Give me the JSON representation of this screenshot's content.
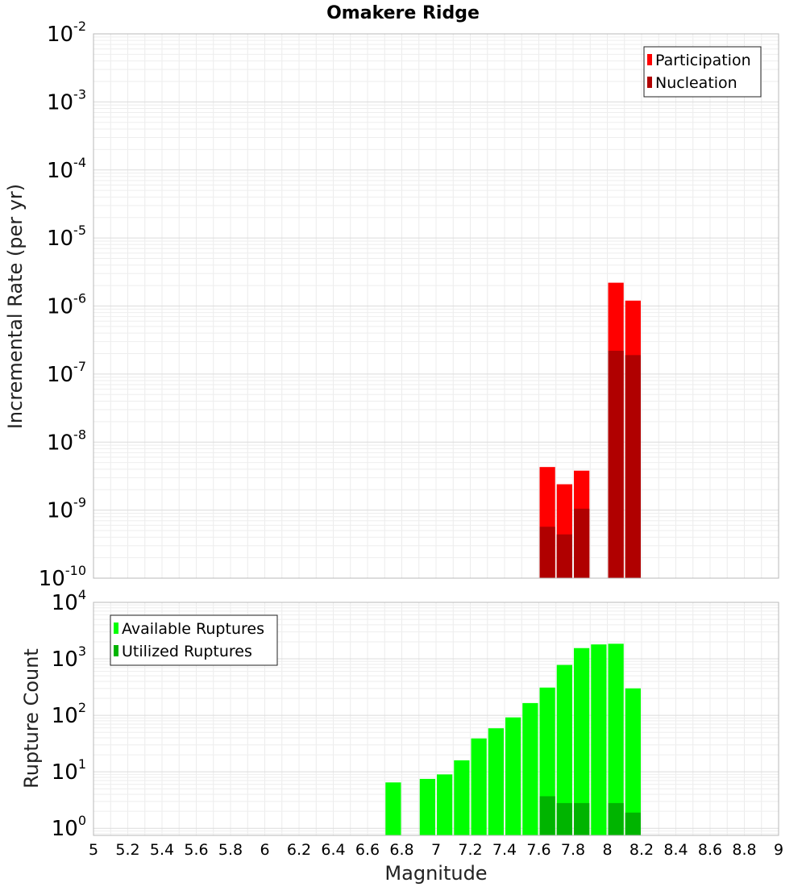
{
  "chart_data": [
    {
      "type": "bar",
      "title": "Omakere Ridge",
      "xlabel": "",
      "ylabel": "Incremental Rate (per yr)",
      "xlim": [
        5,
        9
      ],
      "ylim": [
        1e-10,
        0.01
      ],
      "yscale": "log",
      "grid": true,
      "legend_position": "top-right",
      "bin_width": 0.1,
      "y_ticks": [
        {
          "base": "10",
          "exp": "-10"
        },
        {
          "base": "10",
          "exp": "-9"
        },
        {
          "base": "10",
          "exp": "-8"
        },
        {
          "base": "10",
          "exp": "-7"
        },
        {
          "base": "10",
          "exp": "-6"
        },
        {
          "base": "10",
          "exp": "-5"
        },
        {
          "base": "10",
          "exp": "-4"
        },
        {
          "base": "10",
          "exp": "-3"
        },
        {
          "base": "10",
          "exp": "-2"
        }
      ],
      "series": [
        {
          "name": "Participation",
          "color": "#ff0000",
          "x": [
            7.65,
            7.75,
            7.85,
            8.05,
            8.15
          ],
          "values": [
            4.3e-09,
            2.4e-09,
            3.8e-09,
            2.2e-06,
            1.2e-06
          ]
        },
        {
          "name": "Nucleation",
          "color": "#b00000",
          "x": [
            7.65,
            7.75,
            7.85,
            8.05,
            8.15
          ],
          "values": [
            5.7e-10,
            4.4e-10,
            1.05e-09,
            2.2e-07,
            1.9e-07
          ]
        }
      ]
    },
    {
      "type": "bar",
      "title": "",
      "xlabel": "Magnitude",
      "ylabel": "Rupture Count",
      "xlim": [
        5,
        9
      ],
      "ylim": [
        0.75,
        10000
      ],
      "yscale": "log",
      "grid": true,
      "legend_position": "top-left",
      "bin_width": 0.1,
      "x_ticks": [
        "5",
        "5.2",
        "5.4",
        "5.6",
        "5.8",
        "6",
        "6.2",
        "6.4",
        "6.6",
        "6.8",
        "7",
        "7.2",
        "7.4",
        "7.6",
        "7.8",
        "8",
        "8.2",
        "8.4",
        "8.6",
        "8.8",
        "9"
      ],
      "y_ticks": [
        {
          "base": "10",
          "exp": "0"
        },
        {
          "base": "10",
          "exp": "1"
        },
        {
          "base": "10",
          "exp": "2"
        },
        {
          "base": "10",
          "exp": "3"
        },
        {
          "base": "10",
          "exp": "4"
        }
      ],
      "series": [
        {
          "name": "Available Ruptures",
          "color": "#00ff00",
          "x": [
            6.75,
            6.95,
            7.05,
            7.15,
            7.25,
            7.35,
            7.45,
            7.55,
            7.65,
            7.75,
            7.85,
            7.95,
            8.05,
            8.15
          ],
          "values": [
            6.5,
            7.5,
            9,
            16,
            39,
            59,
            92,
            165,
            310,
            780,
            1550,
            1800,
            1850,
            300
          ]
        },
        {
          "name": "Utilized Ruptures",
          "color": "#00b400",
          "x": [
            7.65,
            7.75,
            7.85,
            8.05,
            8.15
          ],
          "values": [
            3.7,
            2.8,
            2.8,
            2.8,
            1.9
          ]
        }
      ]
    }
  ]
}
